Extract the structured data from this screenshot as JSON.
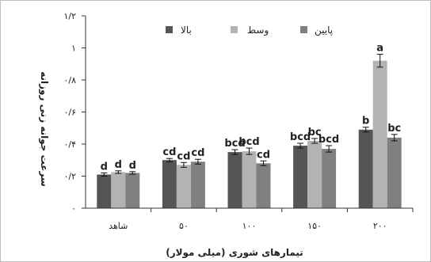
{
  "chart_data": {
    "type": "bar",
    "title": "",
    "xlabel": "تیمارهای شوری (میلی مولار)",
    "ylabel": "سرعت جوانه زنی روزانه",
    "ylim": [
      0,
      1.2
    ],
    "yticks": [
      0,
      0.2,
      0.4,
      0.6,
      0.8,
      1.0,
      1.2
    ],
    "ytick_labels": [
      "۰",
      "۰/۲",
      "۰/۴",
      "۰/۶",
      "۰/۸",
      "۱",
      "۱/۲"
    ],
    "categories": [
      "شاهد",
      "۵۰",
      "۱۰۰",
      "۱۵۰",
      "۲۰۰"
    ],
    "legend_position": "top",
    "series": [
      {
        "name": "بالا",
        "color": "#555555",
        "values": [
          0.21,
          0.3,
          0.35,
          0.39,
          0.49
        ],
        "errors": [
          0.01,
          0.01,
          0.015,
          0.015,
          0.015
        ],
        "labels": [
          "d",
          "cd",
          "bcd",
          "bcd",
          "b"
        ]
      },
      {
        "name": "وسط",
        "color": "#b3b3b3",
        "values": [
          0.225,
          0.27,
          0.355,
          0.42,
          0.92
        ],
        "errors": [
          0.008,
          0.015,
          0.02,
          0.015,
          0.04
        ],
        "labels": [
          "d",
          "cd",
          "bcd",
          "bc",
          "a"
        ]
      },
      {
        "name": "پایین",
        "color": "#808080",
        "values": [
          0.22,
          0.29,
          0.28,
          0.37,
          0.44
        ],
        "errors": [
          0.008,
          0.015,
          0.015,
          0.02,
          0.02
        ],
        "labels": [
          "d",
          "cd",
          "cd",
          "bcd",
          "bc"
        ]
      }
    ]
  }
}
